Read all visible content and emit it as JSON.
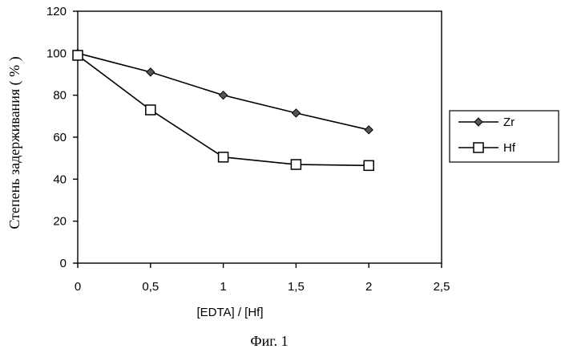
{
  "chart_data": {
    "type": "line",
    "ylabel": "Степень задерживания ( % )",
    "xlabel": "[EDTA] / [Hf]",
    "caption": "Фиг. 1",
    "xlim": [
      0,
      2.5
    ],
    "ylim": [
      0,
      120
    ],
    "x_ticks": [
      "0",
      "0,5",
      "1",
      "1,5",
      "2",
      "2,5"
    ],
    "y_ticks": [
      "0",
      "20",
      "40",
      "60",
      "80",
      "100",
      "120"
    ],
    "x": [
      0,
      0.5,
      1,
      1.5,
      2
    ],
    "legend_position": "right",
    "series": [
      {
        "name": "Zr",
        "marker": "diamond",
        "values": [
          100,
          91,
          80,
          71.5,
          63.5
        ]
      },
      {
        "name": "Hf",
        "marker": "square",
        "values": [
          99,
          73,
          50.5,
          47,
          46.5
        ]
      }
    ]
  }
}
